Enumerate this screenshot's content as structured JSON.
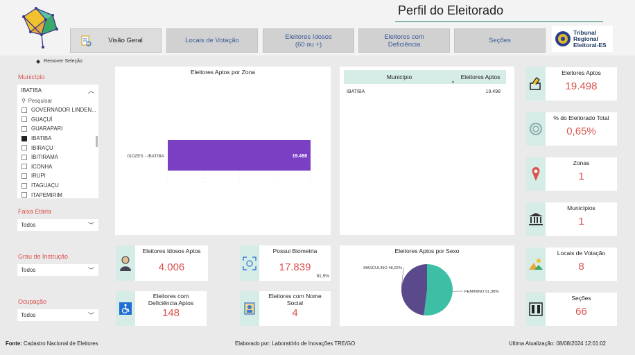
{
  "header": {
    "title": "Perfil do Eleitorado",
    "tabs": [
      {
        "label": "Visão Geral"
      },
      {
        "label": "Locais de Votação"
      },
      {
        "label": "Eleitores Idosos\n(60 ou +)"
      },
      {
        "label": "Eleitores com\nDeficiência"
      },
      {
        "label": "Seções"
      }
    ],
    "tre_logo": [
      "Tribunal",
      "Regional",
      "Eleitoral-ES"
    ],
    "remove_selection": "Remover Seleção"
  },
  "filters": {
    "municipio_label": "Município",
    "municipio_selected": "IBATIBA",
    "search_placeholder": "Pesquisar",
    "municipio_items": [
      {
        "name": "GOVERNADOR LINDEN...",
        "checked": false
      },
      {
        "name": "GUAÇUÍ",
        "checked": false
      },
      {
        "name": "GUARAPARI",
        "checked": false
      },
      {
        "name": "IBATIBA",
        "checked": true
      },
      {
        "name": "IBIRAÇU",
        "checked": false
      },
      {
        "name": "IBITIRAMA",
        "checked": false
      },
      {
        "name": "ICONHA",
        "checked": false
      },
      {
        "name": "IRUPI",
        "checked": false
      },
      {
        "name": "ITAGUAÇU",
        "checked": false
      },
      {
        "name": "ITAPEMIRIM",
        "checked": false
      }
    ],
    "faixa_label": "Faixa Etária",
    "faixa_value": "Todos",
    "grau_label": "Grau de Instrução",
    "grau_value": "Todos",
    "ocup_label": "Ocupação",
    "ocup_value": "Todos"
  },
  "bar_chart": {
    "title": "Eleitores Aptos por Zona",
    "chart_data": {
      "type": "bar",
      "categories": [
        "010ZES - IBATIBA"
      ],
      "values": [
        19498
      ],
      "value_labels": [
        "19.498"
      ],
      "color": "#7b3fc4"
    }
  },
  "table": {
    "col1": "Município",
    "col2": "Eleitores Aptos",
    "rows": [
      {
        "municipio": "IBATIBA",
        "aptos": "19.498"
      }
    ]
  },
  "kpis": {
    "aptos": {
      "title": "Eleitores Aptos",
      "value": "19.498"
    },
    "percent": {
      "title": "% do Eleitorado Total",
      "value": "0,65%"
    },
    "zonas": {
      "title": "Zonas",
      "value": "1"
    },
    "municipios": {
      "title": "Municípios",
      "value": "1"
    },
    "locais": {
      "title": "Locais de Votação",
      "value": "8"
    },
    "secoes": {
      "title": "Seções",
      "value": "66"
    },
    "idosos": {
      "title": "Eleitores Idosos Aptos",
      "value": "4.006"
    },
    "biometria": {
      "title": "Possui Biometria",
      "value": "17.839",
      "sub": "91,5%"
    },
    "deficiencia": {
      "title": "Eleitores com\nDeficiência Aptos",
      "value": "148"
    },
    "nome_social": {
      "title": "Eleitores com Nome\nSocial",
      "value": "4"
    }
  },
  "pie_chart": {
    "title": "Eleitores Aptos por Sexo",
    "chart_data": {
      "type": "pie",
      "categories": [
        "MASCULINO",
        "FEMININO"
      ],
      "values": [
        48.02,
        51.98
      ],
      "labels": [
        "MASCULINO 48,02%",
        "FEMININO 51,98%"
      ],
      "colors": [
        "#5b4a8b",
        "#3cbfa4"
      ]
    }
  },
  "footer": {
    "fonte_label": "Fonte:",
    "fonte_value": "Cadastro Nacional de Eleitores",
    "elaborado": "Elaborado por: Laboratório de Inovações TRE/GO",
    "atualizacao": "Ultima Atualização: 08/08/2024 12:01:02"
  }
}
